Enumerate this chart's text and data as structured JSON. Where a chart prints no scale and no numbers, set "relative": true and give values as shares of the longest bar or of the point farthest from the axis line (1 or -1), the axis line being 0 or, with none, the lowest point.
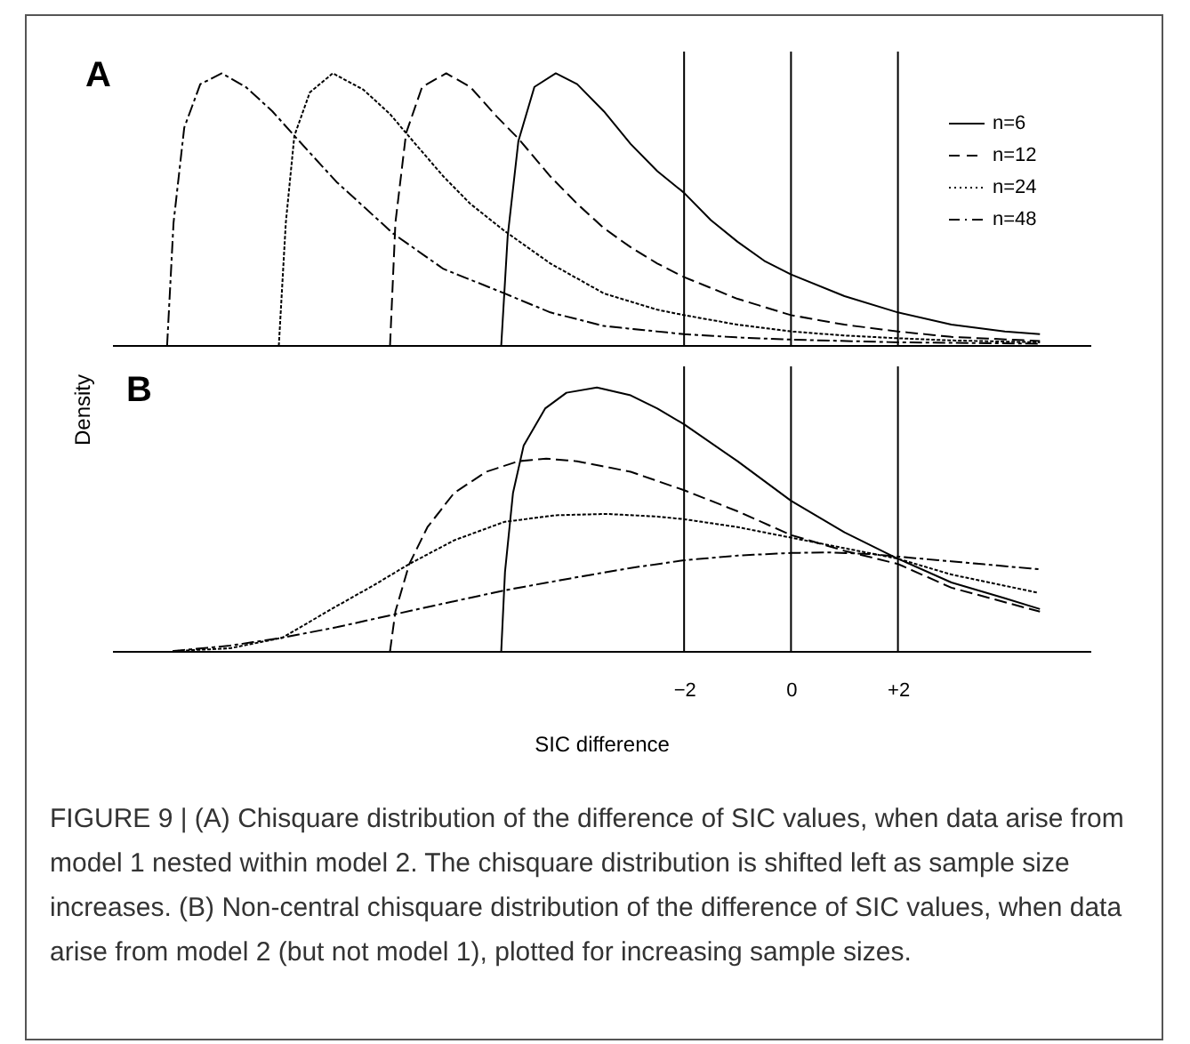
{
  "chart_data": [
    {
      "type": "line",
      "title": "A",
      "ylabel": "Density",
      "relative": true,
      "xlim": [
        -12.7,
        5.6
      ],
      "tick_labels": false,
      "legend": "top right",
      "grid": false,
      "ref_lines": [
        {
          "axis": "x",
          "value": -2,
          "color": "#000000"
        },
        {
          "axis": "x",
          "value": 0,
          "color": "#000000"
        },
        {
          "axis": "x",
          "value": 2,
          "color": "#000000"
        }
      ],
      "series": [
        {
          "name": "n=6",
          "color": "#000000",
          "line_style": "solid",
          "x": [
            -5.42,
            -5.3,
            -5.1,
            -4.8,
            -4.4,
            -4.0,
            -3.5,
            -3.0,
            -2.5,
            -2,
            -1.5,
            -1,
            -0.5,
            0,
            1,
            2,
            3,
            4,
            4.64
          ],
          "values": [
            0,
            0.4,
            0.75,
            0.95,
            1,
            0.96,
            0.86,
            0.74,
            0.64,
            0.56,
            0.46,
            0.38,
            0.31,
            0.26,
            0.18,
            0.12,
            0.075,
            0.05,
            0.04
          ]
        },
        {
          "name": "n=12",
          "color": "#000000",
          "line_style": "dashed",
          "x": [
            -7.5,
            -7.4,
            -7.2,
            -6.9,
            -6.45,
            -6.0,
            -5.5,
            -5.1,
            -4.5,
            -4,
            -3.5,
            -3,
            -2.5,
            -2,
            -1,
            0,
            1,
            2,
            3,
            4.64
          ],
          "values": [
            0,
            0.45,
            0.78,
            0.95,
            1,
            0.95,
            0.84,
            0.76,
            0.62,
            0.52,
            0.43,
            0.36,
            0.3,
            0.25,
            0.17,
            0.11,
            0.075,
            0.05,
            0.03,
            0.015
          ]
        },
        {
          "name": "n=24",
          "color": "#000000",
          "line_style": "dotted",
          "x": [
            -9.58,
            -9.45,
            -9.29,
            -9.0,
            -8.57,
            -8.0,
            -7.5,
            -7.2,
            -6.5,
            -6,
            -5.36,
            -4.5,
            -3.5,
            -2.5,
            -2,
            -1,
            0,
            1,
            2,
            3,
            4.64
          ],
          "values": [
            0,
            0.45,
            0.77,
            0.93,
            1,
            0.94,
            0.85,
            0.78,
            0.62,
            0.52,
            0.42,
            0.3,
            0.19,
            0.13,
            0.11,
            0.075,
            0.05,
            0.035,
            0.025,
            0.017,
            0.01
          ]
        },
        {
          "name": "n=48",
          "color": "#000000",
          "line_style": "dashdot",
          "x": [
            -11.67,
            -11.55,
            -11.35,
            -11.05,
            -10.65,
            -10.2,
            -9.7,
            -9.29,
            -8.5,
            -7.44,
            -6.5,
            -5.36,
            -4.5,
            -3.5,
            -2,
            -1,
            0,
            2,
            4.64
          ],
          "values": [
            0,
            0.45,
            0.8,
            0.96,
            1,
            0.95,
            0.86,
            0.77,
            0.6,
            0.41,
            0.28,
            0.19,
            0.12,
            0.07,
            0.04,
            0.028,
            0.02,
            0.01,
            0.005
          ]
        }
      ]
    },
    {
      "type": "line",
      "title": "B",
      "xlabel": "SIC difference",
      "relative": true,
      "xlim": [
        -12.7,
        5.6
      ],
      "xticks": [
        {
          "value": -2,
          "label": "−2"
        },
        0,
        {
          "value": 2,
          "label": "+2"
        }
      ],
      "tick_labels": "x",
      "legend": "top right",
      "grid": false,
      "ref_lines": [
        {
          "axis": "x",
          "value": -2,
          "color": "#000000"
        },
        {
          "axis": "x",
          "value": 0,
          "color": "#000000"
        },
        {
          "axis": "x",
          "value": 2,
          "color": "#000000"
        }
      ],
      "annotations": [
        "FIGURE 9 | (A) Chisquare distribution of the difference of SIC values, when data arise from model 1 nested within model 2. The chisquare distribution is shifted left as sample size increases. (B) Non-central chisquare distribution of the difference of SIC values, when data arise from model 2 (but not model 1), plotted for increasing sample sizes."
      ],
      "series": [
        {
          "name": "n=6",
          "color": "#000000",
          "line_style": "solid",
          "x": [
            -5.42,
            -5.35,
            -5.2,
            -5.0,
            -4.6,
            -4.2,
            -3.63,
            -3,
            -2.5,
            -2,
            -1,
            0,
            1,
            2,
            3,
            4,
            4.64
          ],
          "values": [
            0,
            0.3,
            0.6,
            0.78,
            0.92,
            0.98,
            1,
            0.97,
            0.92,
            0.86,
            0.72,
            0.57,
            0.45,
            0.35,
            0.26,
            0.2,
            0.16
          ]
        },
        {
          "name": "n=12",
          "color": "#000000",
          "line_style": "dashed",
          "x": [
            -7.5,
            -7.4,
            -7.14,
            -6.8,
            -6.3,
            -5.7,
            -5.1,
            -4.58,
            -4,
            -3,
            -2,
            -1,
            0,
            1,
            2,
            3,
            4.64
          ],
          "values": [
            0,
            0.15,
            0.33,
            0.47,
            0.6,
            0.68,
            0.72,
            0.73,
            0.72,
            0.68,
            0.61,
            0.53,
            0.44,
            0.38,
            0.33,
            0.24,
            0.15
          ]
        },
        {
          "name": "n=24",
          "color": "#000000",
          "line_style": "dotted",
          "x": [
            -11.5,
            -10.5,
            -9.52,
            -8.5,
            -7.8,
            -7.14,
            -6.3,
            -5.36,
            -4.4,
            -3.45,
            -2.5,
            -2,
            -1,
            0,
            1,
            2,
            3,
            4.64
          ],
          "values": [
            0,
            0.01,
            0.05,
            0.17,
            0.25,
            0.33,
            0.42,
            0.49,
            0.515,
            0.52,
            0.51,
            0.5,
            0.47,
            0.43,
            0.39,
            0.35,
            0.29,
            0.22
          ]
        },
        {
          "name": "n=48",
          "color": "#000000",
          "line_style": "dashdot",
          "x": [
            -11.55,
            -10.5,
            -9.52,
            -8.5,
            -7.5,
            -6.5,
            -5.36,
            -4,
            -3,
            -2,
            -1,
            0,
            0.7,
            1.5,
            2,
            3,
            4.64
          ],
          "values": [
            0,
            0.02,
            0.05,
            0.09,
            0.135,
            0.18,
            0.23,
            0.28,
            0.315,
            0.344,
            0.362,
            0.372,
            0.374,
            0.368,
            0.358,
            0.34,
            0.31
          ]
        }
      ]
    }
  ]
}
